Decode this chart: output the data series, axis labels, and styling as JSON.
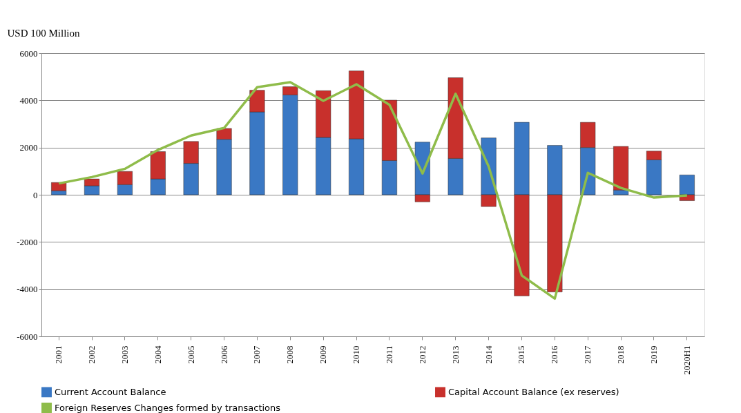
{
  "chart_data": {
    "type": "bar",
    "stacked": true,
    "ylabel": "USD 100 Million",
    "categories": [
      "2001",
      "2002",
      "2003",
      "2004",
      "2005",
      "2006",
      "2007",
      "2008",
      "2009",
      "2010",
      "2011",
      "2012",
      "2013",
      "2014",
      "2015",
      "2016",
      "2017",
      "2018",
      "2019",
      "2020H1"
    ],
    "series": [
      {
        "name": "Current Account Balance",
        "color": "#3a78c4",
        "values": [
          170,
          380,
          430,
          670,
          1330,
          2350,
          3510,
          4230,
          2430,
          2370,
          1450,
          2230,
          1540,
          2410,
          3070,
          2090,
          2000,
          200,
          1480,
          840
        ]
      },
      {
        "name": "Capital Account Balance (ex reserves)",
        "color": "#c8302c",
        "values": [
          350,
          290,
          560,
          1160,
          930,
          460,
          920,
          350,
          1980,
          2880,
          2560,
          -300,
          3420,
          -500,
          -4290,
          -4120,
          1070,
          1850,
          370,
          -250
        ]
      },
      {
        "name": "Foreign Reserves Changes formed by transactions",
        "type": "line",
        "color": "#8fbc4a",
        "values": [
          480,
          750,
          1100,
          1900,
          2510,
          2830,
          4560,
          4770,
          3980,
          4680,
          3810,
          900,
          4280,
          1200,
          -3420,
          -4400,
          930,
          290,
          -120,
          -30
        ]
      }
    ],
    "ylim": [
      -6000,
      6000
    ],
    "yticks": [
      -6000,
      -4000,
      -2000,
      0,
      2000,
      4000,
      6000
    ],
    "grid": "y",
    "legend": "bottom",
    "marker": "none",
    "line_style": "solid"
  }
}
